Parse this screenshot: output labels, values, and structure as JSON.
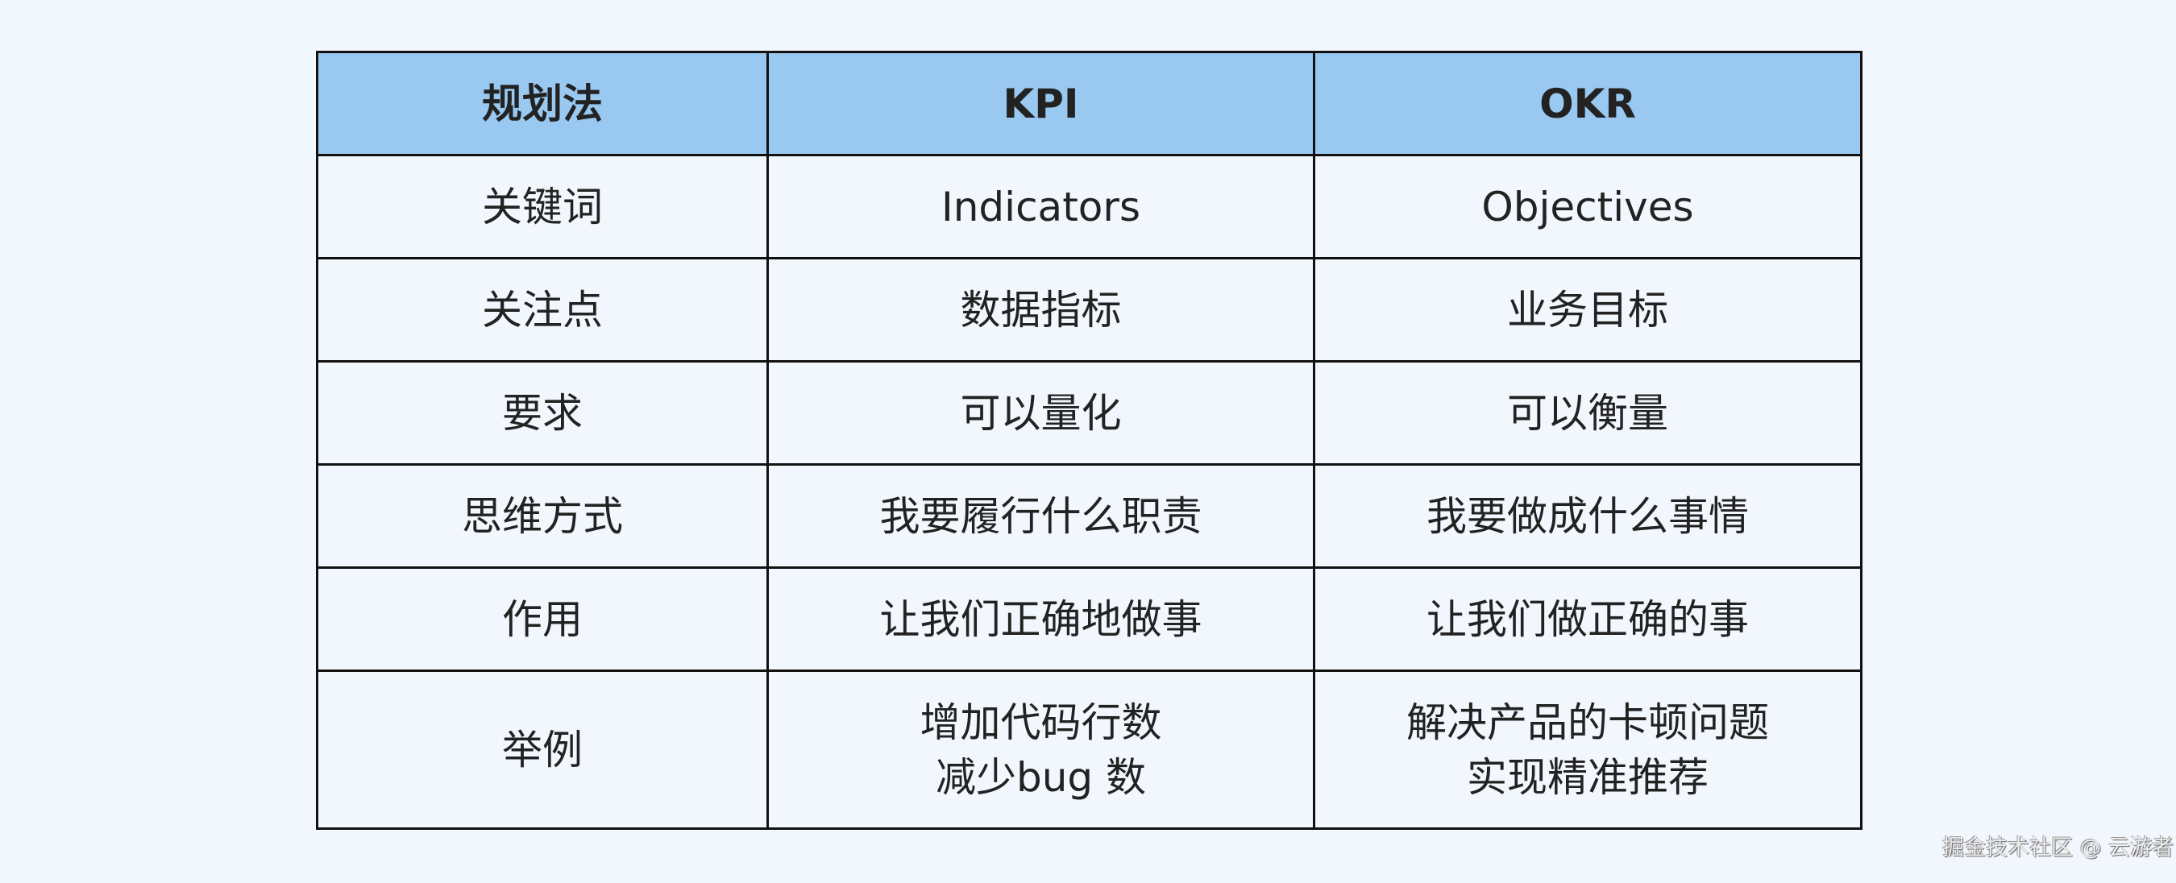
{
  "table": {
    "headers": [
      "规划法",
      "KPI",
      "OKR"
    ],
    "rows": [
      [
        "关键词",
        "Indicators",
        "Objectives"
      ],
      [
        "关注点",
        "数据指标",
        "业务目标"
      ],
      [
        "要求",
        "可以量化",
        "可以衡量"
      ],
      [
        "思维方式",
        "我要履行什么职责",
        "我要做成什么事情"
      ],
      [
        "作用",
        "让我们正确地做事",
        "让我们做正确的事"
      ],
      [
        [
          "举例"
        ],
        [
          "增加代码行数",
          "减少bug 数"
        ],
        [
          "解决产品的卡顿问题",
          "实现精准推荐"
        ]
      ]
    ]
  },
  "colors": {
    "header_bg": "#99c8f0",
    "page_bg": "#f2f7fd",
    "border": "#111111"
  },
  "watermark": "掘金技术社区 @ 云游者"
}
